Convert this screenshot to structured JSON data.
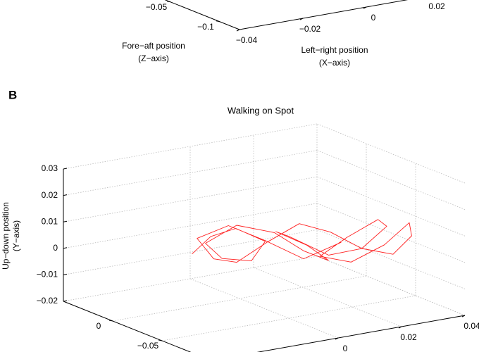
{
  "chart_data": [
    {
      "type": "line3d",
      "xlabel": [
        "Left−right position",
        "(X−axis)"
      ],
      "zlabel": [
        "Fore−aft position",
        "(Z−axis)"
      ],
      "xlim": [
        -0.04,
        0.04
      ],
      "zlim": [
        -0.12,
        0.05
      ],
      "xticks": [
        {
          "value": -0.04,
          "label": "−0.04"
        },
        {
          "value": -0.02,
          "label": "−0.02"
        },
        0,
        0.02
      ],
      "zticks": [
        {
          "value": -0.1,
          "label": "−0.1"
        },
        {
          "value": -0.05,
          "label": "−0.05"
        }
      ]
    },
    {
      "type": "line3d",
      "panel_label": "B",
      "title": "Walking on Spot",
      "ylabel": [
        "Up−down position",
        "(Y−axis)"
      ],
      "xlim": [
        -0.04,
        0.04
      ],
      "ylim": [
        -0.02,
        0.03
      ],
      "zlim": [
        -0.1,
        0.05
      ],
      "xticks": [
        0,
        0.02,
        0.04
      ],
      "yticks": [
        {
          "value": -0.02,
          "label": "−0.02"
        },
        {
          "value": -0.01,
          "label": "−0.01"
        },
        0,
        0.01,
        0.02,
        0.03
      ],
      "zticks": [
        {
          "value": -0.05,
          "label": "−0.05"
        },
        0
      ],
      "grid": true,
      "series": [
        {
          "color": "#ff2020",
          "x": [
            -0.015,
            -0.01,
            -0.003,
            0.005,
            0.0,
            -0.008,
            -0.012,
            -0.004,
            0.006,
            0.014,
            0.02,
            0.012,
            0.004,
            0.01,
            0.02,
            0.028,
            0.034,
            0.03,
            0.022,
            0.016,
            0.024,
            0.032,
            0.038,
            0.04,
            0.036,
            0.028,
            0.02,
            0.012,
            0.004,
            -0.004,
            -0.01,
            -0.014,
            -0.006,
            0.004,
            0.014,
            0.024
          ],
          "y": [
            0.0,
            0.006,
            0.008,
            0.002,
            -0.004,
            -0.002,
            0.004,
            0.01,
            0.006,
            -0.002,
            -0.006,
            0.002,
            0.008,
            0.004,
            -0.004,
            -0.002,
            0.006,
            0.01,
            0.004,
            -0.003,
            -0.006,
            0.0,
            0.008,
            0.002,
            -0.005,
            -0.002,
            0.005,
            0.009,
            0.003,
            -0.004,
            -0.002,
            0.006,
            0.01,
            0.003,
            -0.005,
            0.0
          ],
          "z": [
            0.0,
            -0.003,
            -0.006,
            -0.01,
            -0.012,
            -0.008,
            -0.004,
            -0.01,
            -0.016,
            -0.02,
            -0.026,
            -0.03,
            -0.024,
            -0.018,
            -0.026,
            -0.034,
            -0.04,
            -0.044,
            -0.038,
            -0.03,
            -0.036,
            -0.044,
            -0.05,
            -0.046,
            -0.04,
            -0.034,
            -0.028,
            -0.022,
            -0.016,
            -0.01,
            -0.006,
            -0.002,
            -0.008,
            -0.014,
            -0.02,
            -0.026
          ]
        }
      ]
    }
  ]
}
